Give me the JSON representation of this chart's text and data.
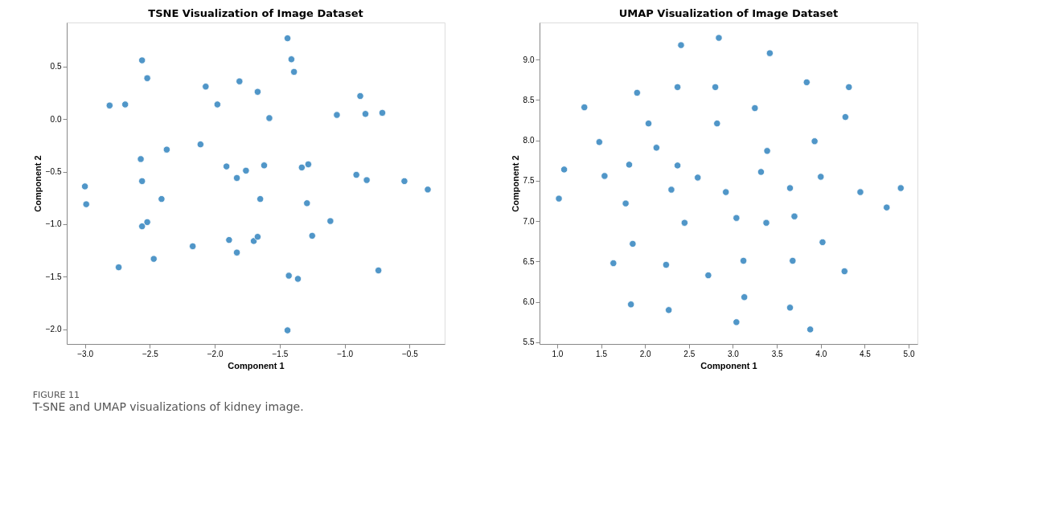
{
  "chart_data": [
    {
      "type": "scatter",
      "title": "TSNE Visualization of Image Dataset",
      "xlabel": "Component 1",
      "ylabel": "Component 2",
      "marker": "circle",
      "grid": false,
      "xlim": [
        -3.14,
        -0.23
      ],
      "ylim": [
        -2.14,
        0.92
      ],
      "xticks": [
        {
          "value": -3.0,
          "label": "−3.0"
        },
        {
          "value": -2.5,
          "label": "−2.5"
        },
        {
          "value": -2.0,
          "label": "−2.0"
        },
        {
          "value": -1.5,
          "label": "−1.5"
        },
        {
          "value": -1.0,
          "label": "−1.0"
        },
        {
          "value": -0.5,
          "label": "−0.5"
        }
      ],
      "yticks": [
        {
          "value": -2.0,
          "label": "−2.0"
        },
        {
          "value": -1.5,
          "label": "−1.5"
        },
        {
          "value": -1.0,
          "label": "−1.0"
        },
        {
          "value": -0.5,
          "label": "−0.5"
        },
        {
          "value": 0.0,
          "label": "0.0"
        },
        {
          "value": 0.5,
          "label": "0.5"
        }
      ],
      "x": [
        -3.0,
        -2.99,
        -2.81,
        -2.69,
        -2.56,
        -2.52,
        -2.57,
        -2.56,
        -2.56,
        -2.52,
        -2.41,
        -2.37,
        -2.47,
        -2.74,
        -2.17,
        -2.11,
        -2.07,
        -1.98,
        -1.81,
        -1.91,
        -1.83,
        -1.76,
        -1.89,
        -1.83,
        -1.67,
        -1.58,
        -1.62,
        -1.65,
        -1.7,
        -1.67,
        -1.44,
        -1.41,
        -1.39,
        -1.33,
        -1.28,
        -1.29,
        -1.25,
        -1.11,
        -1.43,
        -1.36,
        -1.44,
        -1.06,
        -0.88,
        -0.84,
        -0.71,
        -0.91,
        -0.83,
        -0.54,
        -0.36,
        -0.74
      ],
      "series": [
        {
          "color": "#5096c8",
          "values": [
            -0.64,
            -0.81,
            0.13,
            0.14,
            0.56,
            0.39,
            -0.38,
            -0.59,
            -1.02,
            -0.98,
            -0.76,
            -0.29,
            -1.33,
            -1.41,
            -1.21,
            -0.24,
            0.31,
            0.14,
            0.36,
            -0.45,
            -0.56,
            -0.49,
            -1.15,
            -1.27,
            0.26,
            0.01,
            -0.44,
            -0.76,
            -1.16,
            -1.12,
            0.77,
            0.57,
            0.45,
            -0.46,
            -0.43,
            -0.8,
            -1.11,
            -0.97,
            -1.49,
            -1.52,
            -2.01,
            0.04,
            0.22,
            0.05,
            0.06,
            -0.53,
            -0.58,
            -0.59,
            -0.67,
            -1.44
          ]
        }
      ],
      "annotations": [
        "FIGURE 11",
        "T-SNE and UMAP visualizations of kidney image."
      ]
    },
    {
      "type": "scatter",
      "title": "UMAP Visualization of Image Dataset",
      "xlabel": "Component 1",
      "ylabel": "Component 2",
      "marker": "circle",
      "grid": false,
      "xlim": [
        0.8,
        5.1
      ],
      "ylim": [
        5.48,
        9.46
      ],
      "xticks": [
        {
          "value": 1.0,
          "label": "1.0"
        },
        1.5,
        {
          "value": 2.0,
          "label": "2.0"
        },
        2.5,
        {
          "value": 3.0,
          "label": "3.0"
        },
        3.5,
        {
          "value": 4.0,
          "label": "4.0"
        },
        4.5,
        {
          "value": 5.0,
          "label": "5.0"
        }
      ],
      "yticks": [
        5.5,
        {
          "value": 6.0,
          "label": "6.0"
        },
        6.5,
        {
          "value": 7.0,
          "label": "7.0"
        },
        7.5,
        {
          "value": 8.0,
          "label": "8.0"
        },
        8.5,
        {
          "value": 9.0,
          "label": "9.0"
        }
      ],
      "x": [
        1.02,
        1.08,
        1.31,
        1.48,
        1.54,
        1.64,
        1.78,
        1.82,
        1.84,
        1.86,
        1.91,
        2.04,
        2.13,
        2.24,
        2.27,
        2.3,
        2.37,
        2.37,
        2.41,
        2.45,
        2.6,
        2.72,
        2.8,
        2.82,
        2.84,
        2.92,
        3.04,
        3.04,
        3.12,
        3.13,
        3.25,
        3.32,
        3.39,
        3.38,
        3.42,
        3.65,
        3.7,
        3.68,
        3.65,
        3.84,
        3.88,
        3.93,
        4.0,
        4.02,
        4.28,
        4.32,
        4.27,
        4.45,
        4.75,
        4.91
      ],
      "series": [
        {
          "color": "#5096c8",
          "values": [
            7.28,
            7.64,
            8.41,
            7.98,
            7.56,
            6.48,
            7.22,
            7.7,
            5.97,
            6.72,
            8.59,
            8.21,
            7.91,
            6.46,
            5.9,
            7.39,
            8.66,
            7.69,
            9.18,
            6.98,
            7.54,
            6.33,
            8.66,
            8.21,
            9.27,
            7.36,
            7.04,
            5.75,
            6.51,
            6.06,
            8.4,
            7.61,
            7.87,
            6.98,
            9.08,
            7.41,
            7.06,
            6.51,
            5.93,
            8.72,
            5.66,
            7.99,
            7.55,
            6.74,
            8.29,
            8.66,
            6.38,
            7.36,
            7.17,
            7.41
          ]
        }
      ]
    }
  ]
}
